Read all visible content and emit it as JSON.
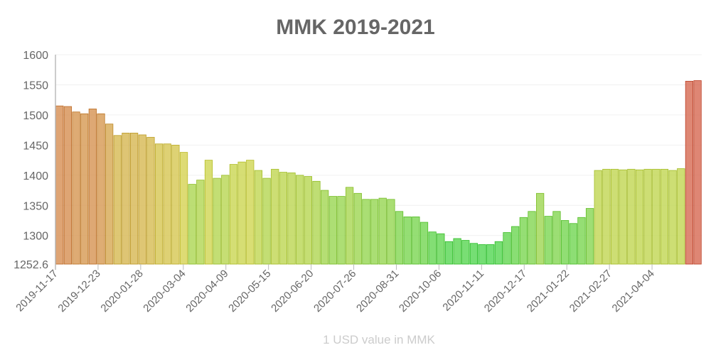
{
  "chart_data": {
    "type": "bar",
    "title": "MMK 2019-2021",
    "xlabel": "1 USD value in MMK",
    "ylabel": "",
    "ylim": [
      1252.6,
      1600
    ],
    "yticks": [
      "1252.6",
      "1300",
      "1350",
      "1400",
      "1450",
      "1500",
      "1550",
      "1600"
    ],
    "xticks": [
      "2019-11-17",
      "2019-12-23",
      "2020-01-28",
      "2020-03-04",
      "2020-04-09",
      "2020-05-15",
      "2020-06-20",
      "2020-07-26",
      "2020-08-31",
      "2020-10-06",
      "2020-11-11",
      "2020-12-17",
      "2021-01-22",
      "2021-02-27",
      "2021-04-04"
    ],
    "grid": true,
    "color_scale": {
      "low": "#4cd137",
      "mid": "#c8d84a",
      "high": "#d9603b"
    },
    "x": [
      "2019-11-17",
      "2019-11-24",
      "2019-12-01",
      "2019-12-08",
      "2019-12-15",
      "2019-12-22",
      "2019-12-29",
      "2020-01-05",
      "2020-01-12",
      "2020-01-19",
      "2020-01-26",
      "2020-02-02",
      "2020-02-09",
      "2020-02-16",
      "2020-02-23",
      "2020-03-01",
      "2020-03-08",
      "2020-03-15",
      "2020-03-22",
      "2020-03-29",
      "2020-04-05",
      "2020-04-12",
      "2020-04-19",
      "2020-04-26",
      "2020-05-03",
      "2020-05-10",
      "2020-05-17",
      "2020-05-24",
      "2020-05-31",
      "2020-06-07",
      "2020-06-14",
      "2020-06-21",
      "2020-06-28",
      "2020-07-05",
      "2020-07-12",
      "2020-07-19",
      "2020-07-26",
      "2020-08-02",
      "2020-08-09",
      "2020-08-16",
      "2020-08-23",
      "2020-08-30",
      "2020-09-06",
      "2020-09-13",
      "2020-09-20",
      "2020-09-27",
      "2020-10-04",
      "2020-10-11",
      "2020-10-18",
      "2020-10-25",
      "2020-11-01",
      "2020-11-08",
      "2020-11-15",
      "2020-11-22",
      "2020-11-29",
      "2020-12-06",
      "2020-12-13",
      "2020-12-20",
      "2020-12-27",
      "2021-01-03",
      "2021-01-10",
      "2021-01-17",
      "2021-01-24",
      "2021-01-31",
      "2021-02-07",
      "2021-02-14",
      "2021-02-21",
      "2021-02-28",
      "2021-03-07",
      "2021-03-14",
      "2021-03-21",
      "2021-03-28",
      "2021-04-04",
      "2021-04-11",
      "2021-04-18",
      "2021-04-25",
      "2021-05-02",
      "2021-05-09"
    ],
    "values": [
      1515,
      1514,
      1505,
      1502,
      1510,
      1502,
      1485,
      1466,
      1470,
      1470,
      1467,
      1463,
      1452,
      1452,
      1450,
      1438,
      1385,
      1392,
      1425,
      1395,
      1400,
      1418,
      1422,
      1425,
      1408,
      1395,
      1410,
      1405,
      1404,
      1400,
      1398,
      1390,
      1375,
      1365,
      1365,
      1380,
      1370,
      1360,
      1360,
      1362,
      1360,
      1340,
      1331,
      1331,
      1322,
      1306,
      1303,
      1290,
      1295,
      1292,
      1287,
      1285,
      1285,
      1290,
      1305,
      1315,
      1330,
      1340,
      1370,
      1332,
      1340,
      1325,
      1320,
      1330,
      1345,
      1408,
      1410,
      1410,
      1409,
      1410,
      1409,
      1410,
      1410,
      1410,
      1408,
      1411,
      1556,
      1557
    ]
  }
}
